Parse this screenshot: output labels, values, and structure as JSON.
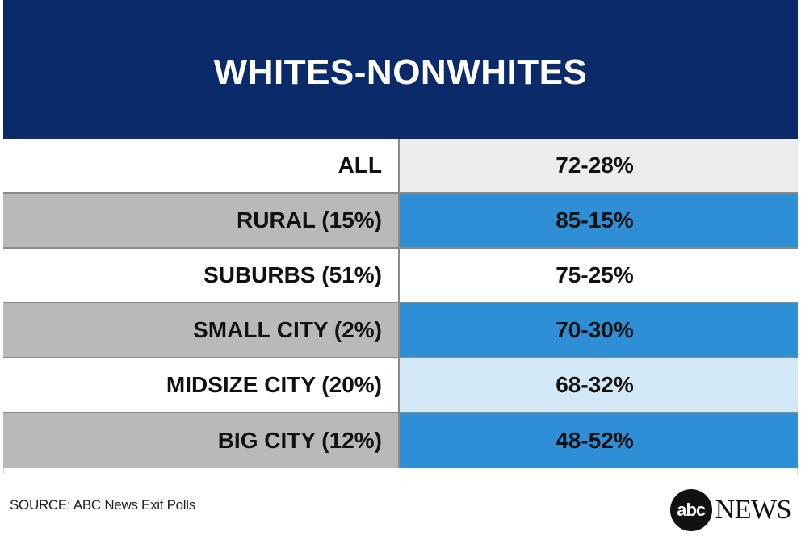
{
  "colors": {
    "header_bg": "#0b2a6a",
    "label_white": "#ffffff",
    "label_gray": "#b9b9b9",
    "value_white": "#ffffff",
    "value_light_gray": "#ececec",
    "value_blue": "#2e8fd6",
    "value_light_blue": "#d3e8f7"
  },
  "chart_data": {
    "type": "table",
    "title": "WHITES-NONWHITES",
    "rows": [
      {
        "label": "ALL",
        "value": "72-28%",
        "whites": 72,
        "nonwhites": 28,
        "label_bg": "#ffffff",
        "value_bg": "#ececec"
      },
      {
        "label": "RURAL (15%)",
        "value": "85-15%",
        "whites": 85,
        "nonwhites": 15,
        "label_bg": "#b9b9b9",
        "value_bg": "#2e8fd6"
      },
      {
        "label": "SUBURBS (51%)",
        "value": "75-25%",
        "whites": 75,
        "nonwhites": 25,
        "label_bg": "#ffffff",
        "value_bg": "#ffffff"
      },
      {
        "label": "SMALL CITY (2%)",
        "value": "70-30%",
        "whites": 70,
        "nonwhites": 30,
        "label_bg": "#b9b9b9",
        "value_bg": "#2e8fd6"
      },
      {
        "label": "MIDSIZE CITY (20%)",
        "value": "68-32%",
        "whites": 68,
        "nonwhites": 32,
        "label_bg": "#ffffff",
        "value_bg": "#d3e8f7"
      },
      {
        "label": "BIG CITY (12%)",
        "value": "48-52%",
        "whites": 48,
        "nonwhites": 52,
        "label_bg": "#b9b9b9",
        "value_bg": "#2e8fd6"
      }
    ]
  },
  "footer": {
    "source": "SOURCE: ABC News Exit Polls",
    "logo_mark": "abc",
    "logo_word": "NEWS"
  }
}
